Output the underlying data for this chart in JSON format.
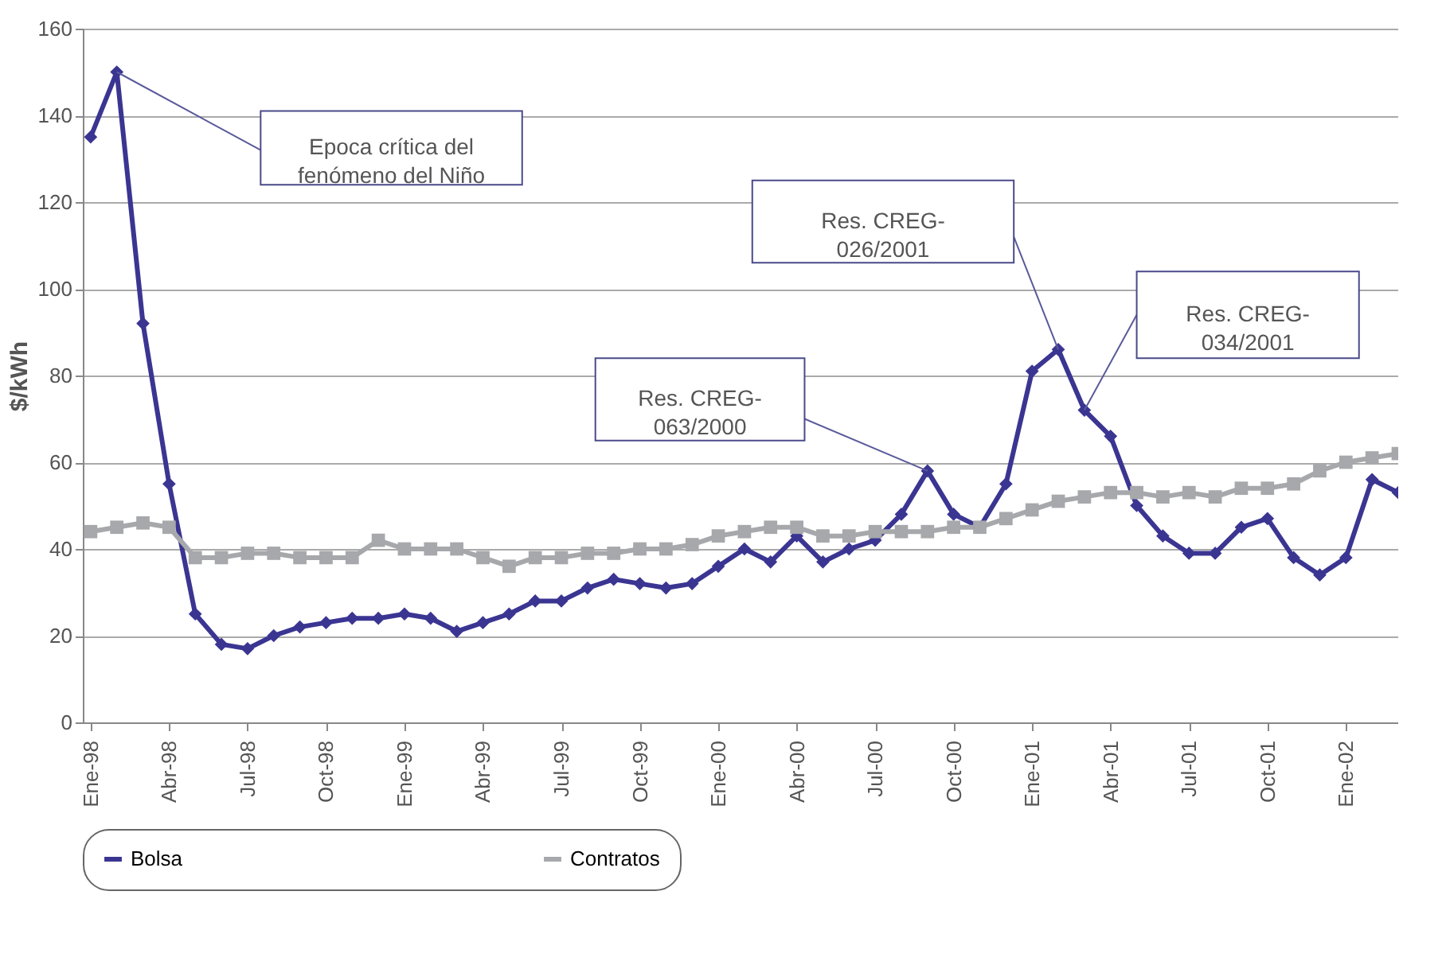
{
  "chart_data": {
    "type": "line",
    "ylabel": "$/kWh",
    "categories": [
      "Ene-98",
      null,
      null,
      "Abr-98",
      null,
      null,
      "Jul-98",
      null,
      null,
      "Oct-98",
      null,
      null,
      "Ene-99",
      null,
      null,
      "Abr-99",
      null,
      null,
      "Jul-99",
      null,
      null,
      "Oct-99",
      null,
      null,
      "Ene-00",
      null,
      null,
      "Abr-00",
      null,
      null,
      "Jul-00",
      null,
      null,
      "Oct-00",
      null,
      null,
      "Ene-01",
      null,
      null,
      "Abr-01",
      null,
      null,
      "Jul-01",
      null,
      null,
      "Oct-01",
      null,
      null,
      "Ene-02",
      null,
      null
    ],
    "series": [
      {
        "name": "Bolsa",
        "color": "#3b3592",
        "marker": "diamond",
        "values": [
          135,
          150,
          92,
          55,
          25,
          18,
          17,
          20,
          22,
          23,
          24,
          24,
          25,
          24,
          21,
          23,
          25,
          28,
          28,
          31,
          33,
          32,
          31,
          32,
          36,
          40,
          37,
          43,
          37,
          40,
          42,
          48,
          58,
          48,
          45,
          55,
          81,
          86,
          72,
          66,
          50,
          43,
          39,
          39,
          45,
          47,
          38,
          34,
          38,
          56,
          53
        ]
      },
      {
        "name": "Contratos",
        "color": "#a6a8ab",
        "marker": "square",
        "values": [
          44,
          45,
          46,
          45,
          38,
          38,
          39,
          39,
          38,
          38,
          38,
          42,
          40,
          40,
          40,
          38,
          36,
          38,
          38,
          39,
          39,
          40,
          40,
          41,
          43,
          44,
          45,
          45,
          43,
          43,
          44,
          44,
          44,
          45,
          45,
          47,
          49,
          51,
          52,
          53,
          53,
          52,
          53,
          52,
          54,
          54,
          55,
          58,
          60,
          61,
          62
        ]
      }
    ],
    "ylim": [
      0,
      160
    ],
    "yticks": [
      0,
      20,
      40,
      60,
      80,
      100,
      120,
      140,
      160
    ],
    "grid": "y",
    "legend": "bottom",
    "line_style": "solid",
    "annotations": [
      "Epoca crítica del\nfenómeno del Niño",
      "Res. CREG-\n063/2000",
      "Res. CREG-\n026/2001",
      "Res. CREG-\n034/2001"
    ]
  }
}
